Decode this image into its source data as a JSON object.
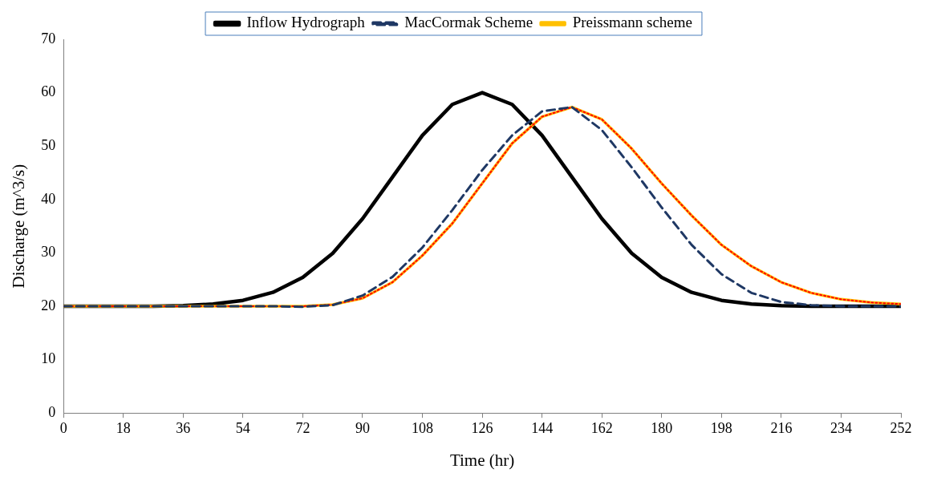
{
  "chart_data": {
    "type": "line",
    "xlabel": "Time (hr)",
    "ylabel": "Discharge (m^3/s)",
    "x": [
      0,
      9,
      18,
      27,
      36,
      45,
      54,
      63,
      72,
      81,
      90,
      99,
      108,
      117,
      126,
      135,
      144,
      153,
      162,
      171,
      180,
      189,
      198,
      207,
      216,
      225,
      234,
      243,
      252
    ],
    "xlim": [
      0,
      252
    ],
    "xticks": [
      0,
      18,
      36,
      54,
      72,
      90,
      108,
      126,
      144,
      162,
      180,
      198,
      216,
      234,
      252
    ],
    "ylim": [
      0,
      70
    ],
    "yticks": [
      0,
      10,
      20,
      30,
      40,
      50,
      60,
      70
    ],
    "grid": false,
    "legend": "top",
    "marker": "none",
    "series": [
      {
        "name": "Inflow Hydrograph",
        "color": "#000000",
        "line_style": "solid",
        "values": [
          20,
          20,
          20,
          20,
          20.1,
          20.4,
          21.1,
          22.6,
          25.4,
          29.9,
          36.4,
          44.2,
          52,
          57.8,
          60,
          57.8,
          52,
          44.2,
          36.4,
          29.9,
          25.4,
          22.6,
          21.1,
          20.4,
          20.1,
          20,
          20,
          20,
          20
        ]
      },
      {
        "name": "MacCormak Scheme",
        "color": "#1f3864",
        "line_style": "dashed",
        "values": [
          20,
          20,
          20,
          20,
          20,
          20,
          20,
          20,
          19.9,
          20.2,
          22,
          25.5,
          31,
          38,
          45.5,
          52,
          56.5,
          57.3,
          53,
          46,
          38.5,
          31.5,
          26,
          22.5,
          20.8,
          20.2,
          20,
          20,
          20
        ]
      },
      {
        "name": "Preissmann scheme",
        "color": "#ffc000",
        "line_style": "solid",
        "values": [
          20,
          20,
          20,
          20,
          20,
          20,
          20,
          20,
          20,
          20.3,
          21.5,
          24.5,
          29.5,
          35.5,
          43,
          50.5,
          55.5,
          57.3,
          55,
          49.5,
          43,
          37,
          31.5,
          27.5,
          24.5,
          22.5,
          21.3,
          20.7,
          20.4
        ]
      },
      {
        "color": "#ff0000",
        "line_style": "dotted",
        "values": [
          20,
          20,
          20,
          20,
          20,
          20,
          20,
          20,
          20,
          20.3,
          21.5,
          24.5,
          29.5,
          35.5,
          43,
          50.5,
          55.5,
          57.3,
          55,
          49.5,
          43,
          37,
          31.5,
          27.5,
          24.5,
          22.5,
          21.3,
          20.7,
          20.4
        ]
      }
    ]
  }
}
